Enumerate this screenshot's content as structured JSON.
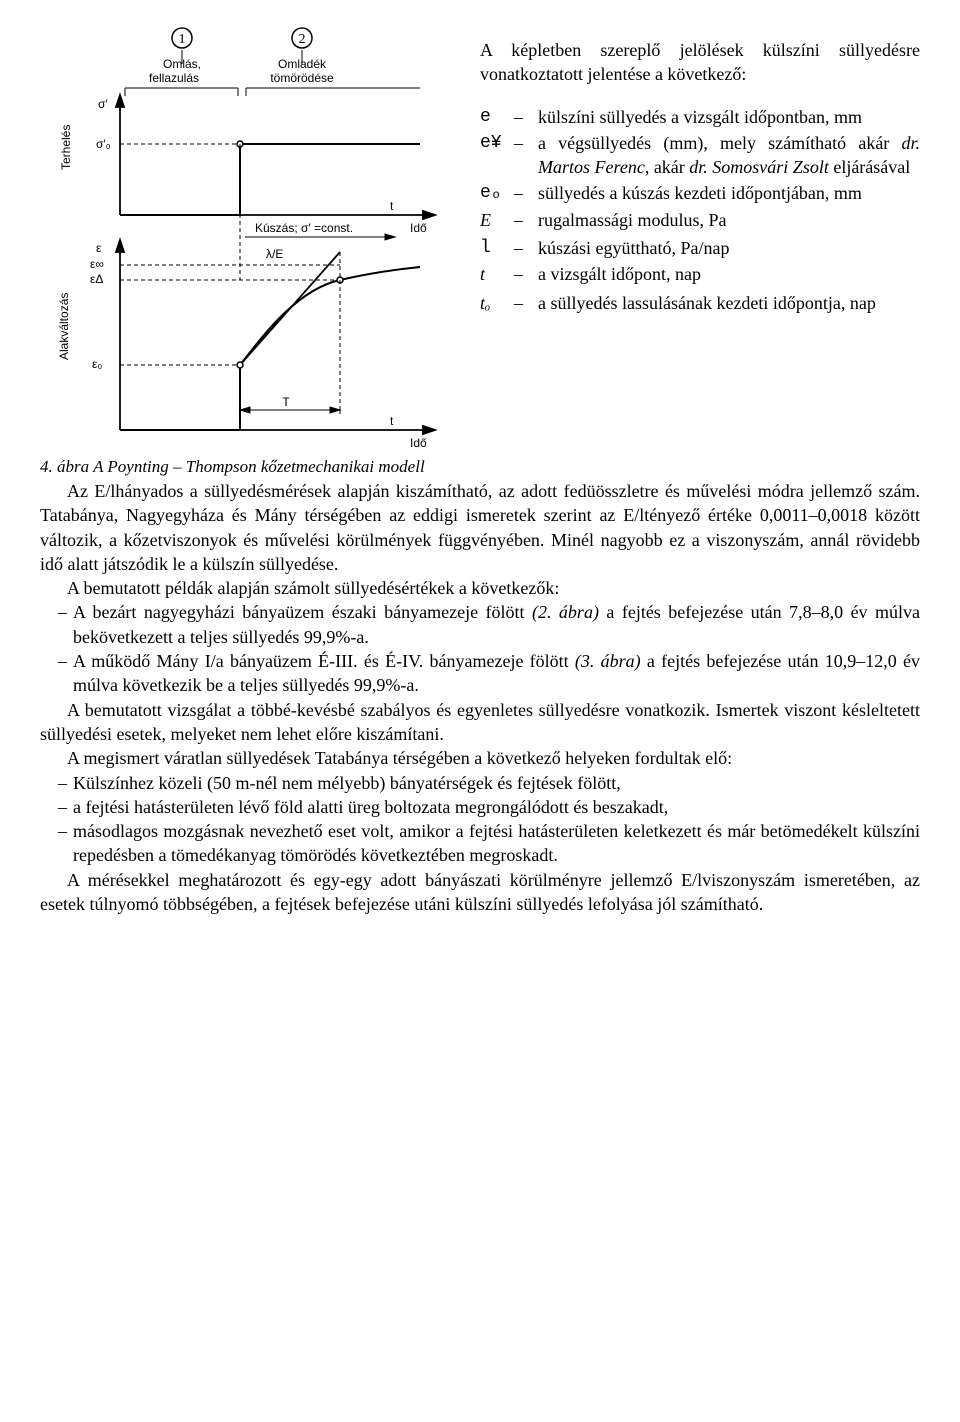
{
  "figure": {
    "labels": {
      "circle1": "1",
      "circle2": "2",
      "block1_l1": "Omlás,",
      "block1_l2": "fellazulás",
      "block2_l1": "Omladék",
      "block2_l2": "tömörödése",
      "y1_top": "σ′",
      "y1_mid": "σ′₀",
      "y1_axis": "Terhelés",
      "x1": "t",
      "x1_label": "Idő",
      "kuszas": "Kúszás; σ′ =const.",
      "lambda": "λ/E",
      "y2_e": "ε",
      "y2_einf": "ε∞",
      "y2_edelta": "εΔ",
      "y2_e0": "ε₀",
      "y2_axis": "Alakváltozás",
      "T": "T",
      "x2": "t",
      "x2_label": "Idő"
    },
    "caption_prefix": "4. ábra ",
    "caption_text": "A Poynting – Thompson kőzetmechanikai modell"
  },
  "intro": "A képletben szereplő jelölések külszíni süllyedésre vonatkoztatott jelentése a következő:",
  "defs": [
    {
      "sym": "e",
      "sym_style": "mono",
      "text": "külszíni süllyedés a vizsgált időpontban, mm"
    },
    {
      "sym": "e¥",
      "sym_style": "mono",
      "text": "a végsüllyedés (mm), mely számítható akár <i>dr. Martos Ferenc</i>, akár <i>dr. Somosvári Zsolt</i> eljárásával"
    },
    {
      "sym": "eₒ",
      "sym_style": "mono",
      "text": "süllyedés a kúszás kezdeti időpontjában, mm"
    },
    {
      "sym": "E",
      "sym_style": "it",
      "text": "rugalmassági modulus, Pa"
    },
    {
      "sym": "l",
      "sym_style": "mono",
      "text": "kúszási együttható, Pa/nap"
    },
    {
      "sym": "t",
      "sym_style": "it",
      "text": "a vizsgált időpont, nap"
    },
    {
      "sym": "tₒ",
      "sym_style": "it",
      "text": "a süllyedés lassulásának kezdeti időpontja, nap"
    }
  ],
  "paras": {
    "p1": "Az E/lhányados a süllyedésmérések alapján kiszámítható, az adott fedüösszletre és művelési módra jellemző szám. Tatabánya, Nagyegyháza és Mány térségében az eddigi ismeretek szerint az E/ltényező értéke  0,0011–0,0018 között változik, a kőzetviszonyok és művelési körülmények függvényében. Minél nagyobb ez a viszonyszám, annál rövidebb idő alatt játszódik le a külszín süllyedése.",
    "p2": "A bemutatott példák alapján számolt süllyedésértékek a következők:",
    "li1": "A bezárt nagyegyházi bányaüzem északi bányamezeje fölött <i>(2. ábra)</i> a fejtés befejezése után 7,8–8,0 év múlva bekövetkezett a teljes süllyedés 99,9%-a.",
    "li2": "A működő Mány I/a bányaüzem É-III. és É-IV. bányamezeje fölött <i>(3. ábra)</i> a fejtés befejezése után 10,9–12,0 év múlva következik be a teljes süllyedés 99,9%-a.",
    "p3": "A bemutatott vizsgálat a többé-kevésbé szabályos és egyenletes süllyedésre vonatkozik. Ismertek viszont késleltetett süllyedési esetek, melyeket nem lehet előre kiszámítani.",
    "p4": "A megismert váratlan süllyedések Tatabánya térségében a következő helyeken fordultak elő:",
    "li3": "Külszínhez közeli (50 m-nél nem mélyebb) bányatérségek és fejtések fölött,",
    "li4": "a fejtési hatásterületen lévő föld alatti üreg boltozata megrongálódott és beszakadt,",
    "li5": "másodlagos mozgásnak nevezhető eset volt, amikor a fejtési hatásterületen keletkezett és már betömedékelt külszíni repedésben a tömedékanyag tömörödés következtében megroskadt.",
    "p5": "A mérésekkel meghatározott és egy-egy adott bányászati körülményre jellemző E/lviszonyszám ismeretében, az esetek túlnyomó többségében, a fejtések befejezése utáni külszíni süllyedés lefolyása jól számítható."
  }
}
